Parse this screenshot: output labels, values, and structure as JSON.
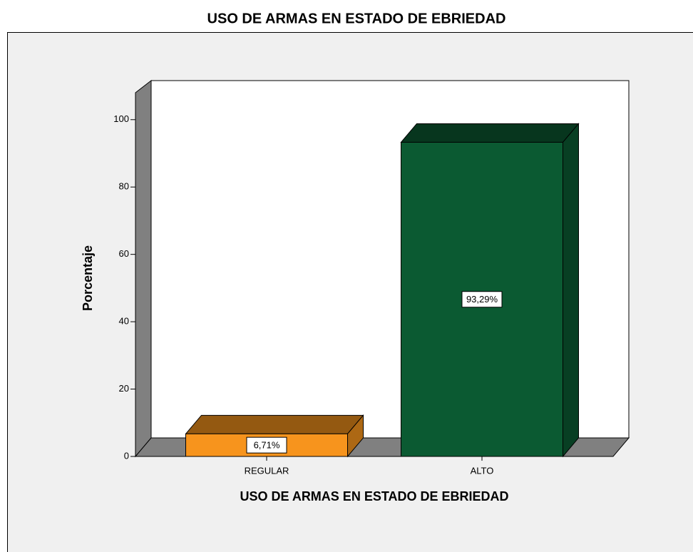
{
  "chart_data": {
    "type": "bar",
    "title": "USO DE ARMAS EN ESTADO DE EBRIEDAD",
    "x_label": "USO DE ARMAS EN ESTADO DE EBRIEDAD",
    "y_label": "Porcentaje",
    "categories": [
      "REGULAR",
      "ALTO"
    ],
    "values": [
      6.71,
      93.29
    ],
    "value_labels": [
      "6,71%",
      "93,29%"
    ],
    "colors": [
      "#f7941d",
      "#0b5a32"
    ],
    "ylim": [
      0,
      108
    ],
    "yticks": [
      0,
      20,
      40,
      60,
      80,
      100
    ]
  }
}
